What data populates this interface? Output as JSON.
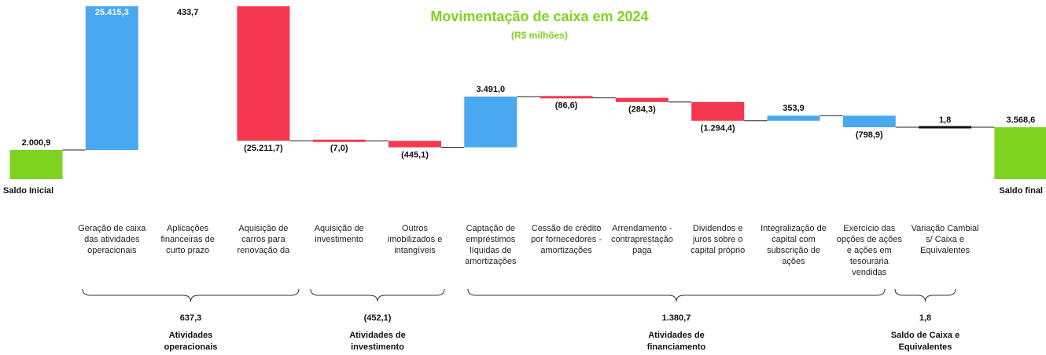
{
  "chart_data": {
    "type": "waterfall",
    "title": "Movimentação de caixa em 2024",
    "subtitle": "(R$ milhões)",
    "categories": [
      "Saldo Inicial",
      "Geração de caixa das atividades operacionais",
      "Aplicações financeiras de curto prazo",
      "Aquisição de carros para renovação da",
      "Aquisição de investimento",
      "Outros imobilizados e intangíveis",
      "Captação de empréstimos líquidas de amortizações",
      "Cessão de crédito por fornecedores - amortizações",
      "Arrendamento - contraprestação paga",
      "Dividendos e juros sobre o capital próprio",
      "Integralização de capital com subscrição de ações",
      "Exercício das opções de ações e ações em tesouraria vendidas",
      "Variação Cambial s/ Caixa e Equivalentes",
      "Saldo final"
    ],
    "values": [
      2000.9,
      25415.3,
      433.7,
      -25211.7,
      -7.0,
      -445.1,
      3491.0,
      -86.6,
      -284.3,
      -1294.4,
      353.9,
      -798.9,
      1.8,
      3568.6
    ],
    "value_labels": [
      "2.000,9",
      "25.415,3",
      "433,7",
      "(25.211,7)",
      "(7,0)",
      "(445,1)",
      "3.491,0",
      "(86,6)",
      "(284,3)",
      "(1.294,4)",
      "353,9",
      "(798,9)",
      "1,8",
      "3.568,6"
    ],
    "colors": [
      "#7ed321",
      "#4aa8f0",
      "#4aa8f0",
      "#f5384f",
      "#f5384f",
      "#f5384f",
      "#4aa8f0",
      "#f5384f",
      "#f5384f",
      "#f5384f",
      "#4aa8f0",
      "#4aa8f0",
      "#111111",
      "#7ed321"
    ],
    "groups": [
      {
        "name": "Atividades operacionais",
        "value": 637.3,
        "value_label": "637,3"
      },
      {
        "name": "Atividades de investimento",
        "value": -452.1,
        "value_label": "(452,1)"
      },
      {
        "name": "Atividades de financiamento",
        "value": 1380.7,
        "value_label": "1.380,7"
      },
      {
        "name": "Saldo de Caixa e Equivalentes",
        "value": 1.8,
        "value_label": "1,8"
      }
    ]
  }
}
